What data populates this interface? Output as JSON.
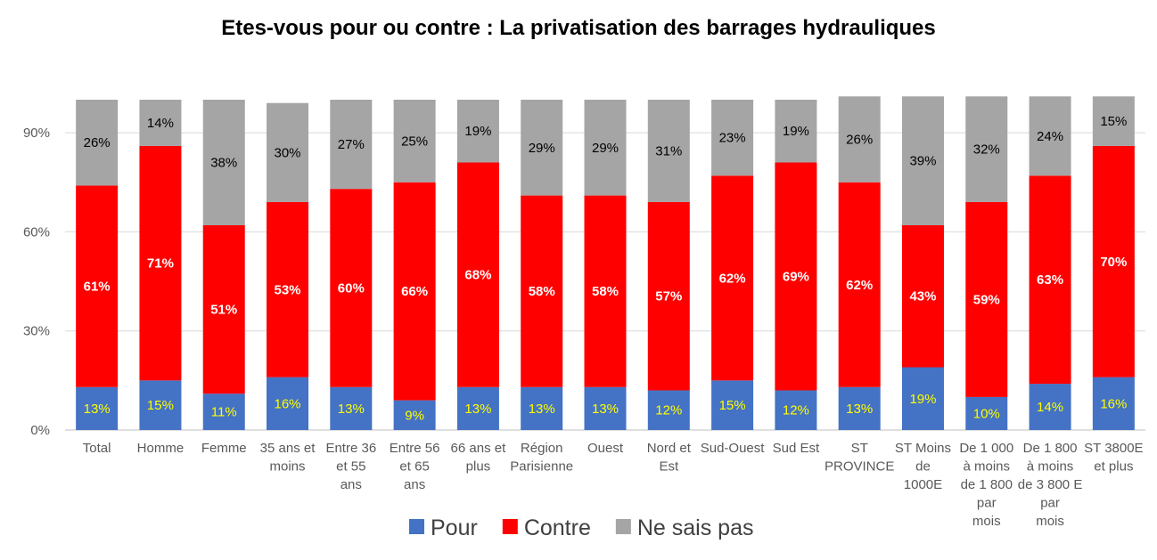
{
  "chart_data": {
    "type": "bar",
    "stacked": true,
    "title": "Etes-vous pour ou contre : La privatisation des barrages hydrauliques",
    "xlabel": "",
    "ylabel": "",
    "ylim": [
      0,
      100
    ],
    "yticks": [
      "0%",
      "30%",
      "60%",
      "90%"
    ],
    "grid": true,
    "legend_position": "bottom",
    "categories": [
      "Total",
      "Homme",
      "Femme",
      "35 ans et moins",
      "Entre 36 et 55 ans",
      "Entre 56 et 65 ans",
      "66 ans et plus",
      "Région Parisienne",
      "Ouest",
      "Nord et Est",
      "Sud-Ouest",
      "Sud Est",
      "ST PROVINCE",
      "ST Moins de 1000E",
      "De 1 000 à moins de 1 800 par mois",
      "De 1 800 à moins de 3 800 E par mois",
      "ST 3800E et plus"
    ],
    "category_lines": [
      [
        "Total"
      ],
      [
        "Homme"
      ],
      [
        "Femme"
      ],
      [
        "35 ans et",
        "moins"
      ],
      [
        "Entre 36",
        "et 55",
        "ans"
      ],
      [
        "Entre 56",
        "et 65",
        "ans"
      ],
      [
        "66 ans et",
        "plus"
      ],
      [
        "Région",
        "Parisienne"
      ],
      [
        "Ouest"
      ],
      [
        "Nord et",
        "Est"
      ],
      [
        "Sud-Ouest"
      ],
      [
        "Sud Est"
      ],
      [
        "ST",
        "PROVINCE"
      ],
      [
        "ST Moins",
        "de",
        "1000E"
      ],
      [
        "De 1 000",
        "à moins",
        "de 1 800",
        "par",
        "mois"
      ],
      [
        "De 1 800",
        "à moins",
        "de 3 800 E",
        "par",
        "mois"
      ],
      [
        "ST 3800E",
        "et plus"
      ]
    ],
    "series": [
      {
        "name": "Pour",
        "color": "#4472C4",
        "label_color": "#FFFF00",
        "values": [
          13,
          15,
          11,
          16,
          13,
          9,
          13,
          13,
          13,
          12,
          15,
          12,
          13,
          19,
          10,
          14,
          16
        ],
        "labels": [
          "13%",
          "15%",
          "11%",
          "16%",
          "13%",
          "9%",
          "13%",
          "13%",
          "13%",
          "12%",
          "15%",
          "12%",
          "13%",
          "19%",
          "10%",
          "14%",
          "16%"
        ]
      },
      {
        "name": "Contre",
        "color": "#FF0000",
        "label_color": "#FFFFFF",
        "values": [
          61,
          71,
          51,
          53,
          60,
          66,
          68,
          58,
          58,
          57,
          62,
          69,
          62,
          43,
          59,
          63,
          70
        ],
        "labels": [
          "61%",
          "71%",
          "51%",
          "53%",
          "60%",
          "66%",
          "68%",
          "58%",
          "58%",
          "57%",
          "62%",
          "69%",
          "62%",
          "43%",
          "59%",
          "63%",
          "70%"
        ]
      },
      {
        "name": "Ne sais pas",
        "color": "#A5A5A5",
        "label_color": "#000000",
        "values": [
          26,
          14,
          38,
          30,
          27,
          25,
          19,
          29,
          29,
          31,
          23,
          19,
          26,
          39,
          32,
          24,
          15
        ],
        "labels": [
          "26%",
          "14%",
          "38%",
          "30%",
          "27%",
          "25%",
          "19%",
          "29%",
          "29%",
          "31%",
          "23%",
          "19%",
          "26%",
          "39%",
          "32%",
          "24%",
          "15%"
        ]
      }
    ]
  }
}
